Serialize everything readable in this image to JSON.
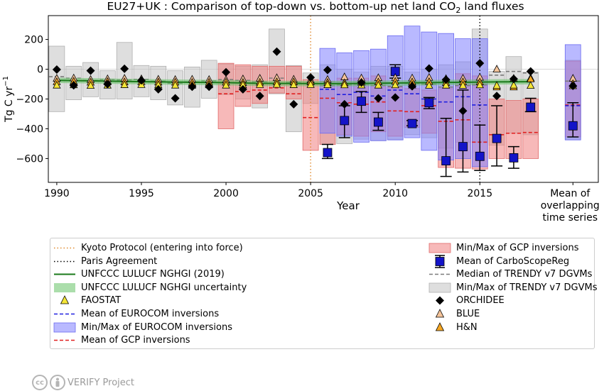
{
  "chart_data": {
    "type": "scatter",
    "title": "EU27+UK : Comparison of top-down vs. bottom-up net land CO",
    "title_subscript": "2",
    "title_suffix": " land fluxes",
    "ylabel": "Tg C yr",
    "ylabel_superscript": "−1",
    "xlabel": "Year",
    "x_tick_labels": [
      "1990",
      "1995",
      "2000",
      "2005",
      "2010",
      "2015"
    ],
    "x_ticks": [
      1990,
      1995,
      2000,
      2005,
      2010,
      2015
    ],
    "mean_label_lines": [
      "Mean of",
      "overlapping",
      "time series"
    ],
    "y_ticks": [
      200,
      0,
      -200,
      -400,
      -600
    ],
    "y_tick_labels": [
      "200",
      "0",
      "−200",
      "−400",
      "−600"
    ],
    "ylim": [
      -760,
      360
    ],
    "xlim": [
      1989.5,
      2022.0
    ],
    "mean_x": 2020.5,
    "grid": false,
    "vlines": [
      {
        "name": "Kyoto Protocol (entering into force)",
        "x": 2005,
        "color": "#e08a2e",
        "style": "dotted"
      },
      {
        "name": "Paris Agreement",
        "x": 2015,
        "color": "#000000",
        "style": "dotted"
      }
    ],
    "unfccc": {
      "name": "UNFCCC LULUCF NGHGI (2019)",
      "uncertainty_name": "UNFCCC LULUCF NGHGI uncertainty",
      "color": "#1a7a1a",
      "band_color": "#66c266",
      "x": [
        1990,
        1992,
        1994,
        1996,
        1998,
        2000,
        2002,
        2004,
        2006,
        2008,
        2010,
        2012,
        2014,
        2016,
        2018
      ],
      "values": [
        -75,
        -78,
        -82,
        -85,
        -88,
        -90,
        -95,
        -96,
        -97,
        -96,
        -93,
        -90,
        -88,
        -85,
        -84
      ],
      "band_half_width": 18
    },
    "faostat": {
      "name": "FAOSTAT",
      "color": "#f5e637",
      "x": [
        1990,
        1991,
        1992,
        1993,
        1994,
        1995,
        1996,
        1997,
        1998,
        1999,
        2000,
        2001,
        2002,
        2003,
        2004,
        2005,
        2006,
        2007,
        2008,
        2009,
        2010,
        2011,
        2012,
        2013,
        2014,
        2015,
        2016,
        2017,
        2018,
        2020.5
      ],
      "values": [
        -108,
        -106,
        -110,
        -108,
        -105,
        -104,
        -106,
        -108,
        -109,
        -106,
        -108,
        -106,
        -104,
        -103,
        -105,
        -104,
        -105,
        -106,
        -107,
        -108,
        -106,
        -107,
        -109,
        -108,
        -109,
        -106,
        -110,
        -108,
        -110,
        -112
      ]
    },
    "blue": {
      "name": "BLUE",
      "color": "#f5c49a",
      "x": [
        1990,
        1991,
        1992,
        1993,
        1994,
        1995,
        1996,
        1997,
        1998,
        1999,
        2000,
        2001,
        2002,
        2003,
        2004,
        2005,
        2006,
        2007,
        2008,
        2009,
        2010,
        2011,
        2012,
        2013,
        2014,
        2015,
        2016,
        2017,
        2018,
        2020.5
      ],
      "values": [
        -62,
        -60,
        -70,
        -65,
        -62,
        -65,
        -68,
        -70,
        -68,
        -70,
        -72,
        -66,
        -62,
        -58,
        -68,
        -72,
        -70,
        -52,
        -60,
        -58,
        -57,
        -60,
        -56,
        -64,
        -62,
        -55,
        0,
        -62,
        -60,
        -62
      ]
    },
    "hn": {
      "name": "H&N",
      "color": "#f5a623",
      "x": [
        1990,
        1991,
        1992,
        1993,
        1994,
        1995,
        1996,
        1997,
        1998,
        1999,
        2000,
        2001,
        2002,
        2003,
        2004,
        2005,
        2006,
        2007,
        2008,
        2009,
        2010,
        2011,
        2012,
        2013,
        2014,
        2015,
        2016,
        2017,
        2018,
        2020.5
      ],
      "values": [
        -85,
        -82,
        -88,
        -84,
        -86,
        -85,
        -87,
        -88,
        -90,
        -89,
        -88,
        -90,
        -88,
        -85,
        -86,
        -86,
        -90,
        -92,
        -88,
        -86,
        -82,
        -86,
        -84,
        -90,
        -86,
        -86,
        -120,
        -120,
        -66,
        -98
      ]
    },
    "orchidee": {
      "name": "ORCHIDEE",
      "color": "#000000",
      "x": [
        1990,
        1991,
        1992,
        1993,
        1994,
        1995,
        1996,
        1997,
        1998,
        1999,
        2000,
        2001,
        2002,
        2003,
        2004,
        2005,
        2006,
        2007,
        2008,
        2009,
        2010,
        2011,
        2012,
        2013,
        2014,
        2015,
        2016,
        2017,
        2018,
        2020.5
      ],
      "values": [
        -2,
        -108,
        -10,
        -100,
        3,
        -75,
        -135,
        -195,
        -118,
        -118,
        -20,
        -135,
        -180,
        118,
        -235,
        -55,
        -5,
        -235,
        -90,
        -195,
        -190,
        -115,
        5,
        -70,
        -280,
        40,
        -180,
        -65,
        -15,
        -112
      ]
    },
    "carboscope": {
      "name": "Mean of CarboScopeReg",
      "color": "#1414c8",
      "x": [
        2006,
        2007,
        2008,
        2009,
        2010,
        2011,
        2012,
        2013,
        2014,
        2015,
        2016,
        2017,
        2018,
        2020.5
      ],
      "values": [
        -560,
        -345,
        -215,
        -355,
        -15,
        -365,
        -225,
        -615,
        -520,
        -585,
        -465,
        -595,
        -255,
        -380
      ],
      "err_lo": [
        -600,
        -460,
        -290,
        -410,
        -60,
        -380,
        -265,
        -720,
        -690,
        -680,
        -650,
        -665,
        -285,
        -455
      ],
      "err_hi": [
        -505,
        -245,
        -150,
        -290,
        30,
        -345,
        -190,
        -330,
        -140,
        -375,
        -245,
        -520,
        -195,
        -225
      ]
    },
    "trendy": {
      "name": "Min/Max of TRENDY v7 DGVMs",
      "median_name": "Median of TRENDY v7 DGVMs",
      "color": "#c8c8c8",
      "x": [
        1990,
        1991,
        1992,
        1993,
        1994,
        1995,
        1996,
        1997,
        1998,
        1999,
        2000,
        2001,
        2002,
        2003,
        2004,
        2005,
        2006,
        2007,
        2008,
        2009,
        2010,
        2011,
        2012,
        2013,
        2014,
        2015,
        2016,
        2017,
        2018,
        2020.5
      ],
      "min": [
        -285,
        -205,
        -185,
        -200,
        -200,
        -185,
        -205,
        -240,
        -255,
        -195,
        -170,
        -200,
        -260,
        -165,
        -420,
        -230,
        -505,
        -500,
        -470,
        -480,
        -470,
        -440,
        -460,
        -530,
        -490,
        -490,
        -510,
        -430,
        -440,
        -470
      ],
      "max": [
        155,
        20,
        45,
        -10,
        180,
        25,
        20,
        -10,
        15,
        60,
        35,
        20,
        30,
        270,
        25,
        -25,
        30,
        0,
        -20,
        20,
        20,
        -20,
        0,
        30,
        50,
        270,
        -15,
        85,
        -20,
        60
      ],
      "median": [
        -50,
        -60,
        -75,
        -70,
        -72,
        -68,
        -80,
        -95,
        -85,
        -78,
        -70,
        -75,
        -85,
        -60,
        -90,
        -95,
        -110,
        -105,
        -100,
        -110,
        -115,
        -95,
        -100,
        -120,
        -110,
        -105,
        -40,
        -15,
        -25,
        -80
      ]
    },
    "gcp": {
      "name": "Min/Max of GCP inversions",
      "mean_name": "Mean of GCP inversions",
      "color": "#f08080",
      "x": [
        2000,
        2001,
        2002,
        2003,
        2004,
        2005,
        2006,
        2007,
        2008,
        2009,
        2010,
        2011,
        2012,
        2013,
        2014,
        2015,
        2016,
        2017,
        2018,
        2020.5
      ],
      "min": [
        -400,
        -250,
        -230,
        -160,
        -200,
        -545,
        -505,
        -440,
        -450,
        -420,
        -450,
        -390,
        -430,
        -660,
        -665,
        -670,
        -600,
        -600,
        -600,
        -455
      ],
      "max": [
        40,
        30,
        20,
        20,
        20,
        -70,
        -80,
        -60,
        -60,
        -45,
        -120,
        -130,
        -140,
        -130,
        -30,
        -45,
        -200,
        -210,
        -200,
        55
      ],
      "mean": [
        -165,
        -150,
        -140,
        -125,
        -165,
        -325,
        -195,
        -225,
        -235,
        -220,
        -280,
        -285,
        -245,
        -350,
        -340,
        -490,
        -440,
        -430,
        -425,
        -240
      ]
    },
    "eurocom": {
      "name": "Min/Max of EUROCOM inversions",
      "mean_name": "Mean of EUROCOM inversions",
      "color": "#8080ff",
      "x": [
        2006,
        2007,
        2008,
        2009,
        2010,
        2011,
        2012,
        2013,
        2014,
        2015,
        2020.5
      ],
      "min": [
        -430,
        -450,
        -490,
        -480,
        -475,
        -460,
        -545,
        -610,
        -600,
        -655,
        -475
      ],
      "max": [
        140,
        110,
        125,
        135,
        225,
        290,
        250,
        240,
        205,
        205,
        165
      ],
      "mean": [
        -135,
        -170,
        -155,
        -180,
        -140,
        -165,
        -200,
        -220,
        -185,
        -240,
        -245
      ]
    },
    "legend_placement": "below"
  },
  "legend": {
    "left": [
      {
        "label": "Kyoto Protocol (entering into force)",
        "symbol": "dotted-line-orange"
      },
      {
        "label": "Paris Agreement",
        "symbol": "dotted-line-black"
      },
      {
        "label": "UNFCCC LULUCF NGHGI (2019)",
        "symbol": "solid-line-green"
      },
      {
        "label": "UNFCCC LULUCF NGHGI uncertainty",
        "symbol": "patch-green"
      },
      {
        "label": "FAOSTAT",
        "symbol": "triangle-yellow"
      },
      {
        "label": "Mean of EUROCOM inversions",
        "symbol": "dashed-line-blue"
      },
      {
        "label": "Min/Max of EUROCOM inversions",
        "symbol": "patch-blue"
      },
      {
        "label": "Mean of GCP inversions",
        "symbol": "dashed-line-red"
      }
    ],
    "right": [
      {
        "label": "Min/Max of GCP inversions",
        "symbol": "patch-red"
      },
      {
        "label": "Mean of CarboScopeReg",
        "symbol": "errorbar-square-blue"
      },
      {
        "label": "Median of TRENDY v7 DGVMs",
        "symbol": "dashed-line-gray"
      },
      {
        "label": "Min/Max of TRENDY v7 DGVMs",
        "symbol": "patch-gray"
      },
      {
        "label": "ORCHIDEE",
        "symbol": "diamond-black"
      },
      {
        "label": "BLUE",
        "symbol": "triangle-peach"
      },
      {
        "label": "H&N",
        "symbol": "triangle-orange"
      }
    ]
  },
  "credit": {
    "cc_label": "cc",
    "text": "VERIFY Project"
  }
}
